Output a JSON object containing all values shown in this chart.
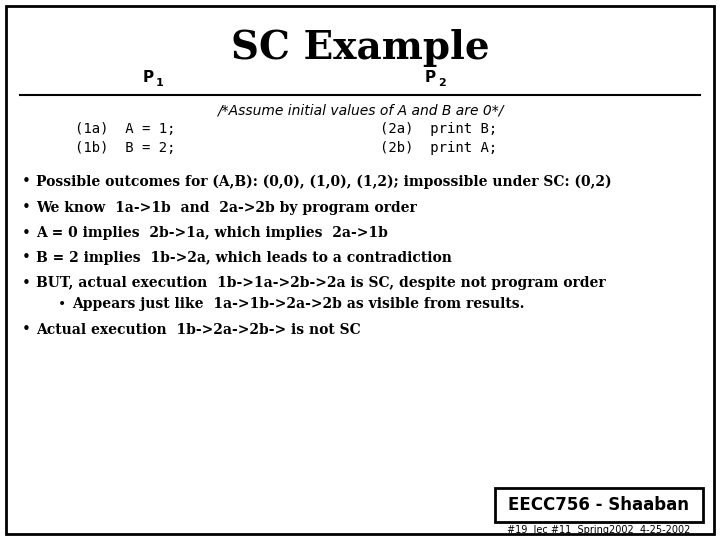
{
  "title": "SC Example",
  "bg_color": "#ffffff",
  "border_color": "#000000",
  "assume_text": "/*Assume initial values of A and B are 0*/",
  "code_1a": "(1a)  A = 1;",
  "code_1b": "(1b)  B = 2;",
  "code_2a": "(2a)  print B;",
  "code_2b": "(2b)  print A;",
  "bullets": [
    "Possible outcomes for (A,B): (0,0), (1,0), (1,2); impossible under SC: (0,2)",
    "We know  1a->1b  and  2a->2b by program order",
    "A = 0 implies  2b->1a, which implies  2a->1b",
    "B = 2 implies  1b->2a, which leads to a contradiction",
    "BUT, actual execution  1b->1a->2b->2a is SC, despite not program order",
    "Appears just like  1a->1b->2a->2b as visible from results.",
    "Actual execution  1b->2a->2b-> is not SC"
  ],
  "sub_bullet_index": 5,
  "footer_box_text": "EECC756 - Shaaban",
  "footer_small_text": "#19  lec #11  Spring2002  4-25-2002",
  "title_fontsize": 28,
  "header_fontsize": 11,
  "assume_fontsize": 10,
  "code_fontsize": 10,
  "bullet_fontsize": 10,
  "footer_fontsize": 12,
  "footer_small_fontsize": 7
}
